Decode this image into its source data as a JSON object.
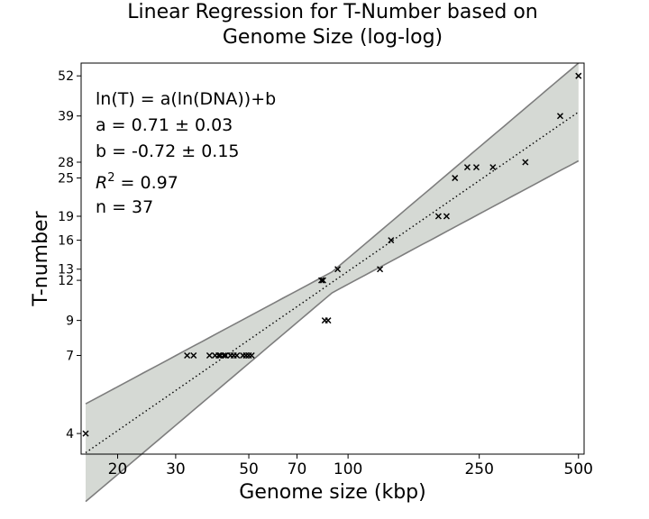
{
  "chart_data": {
    "type": "scatter",
    "title": "Linear Regression for T-Number based on Genome Size (log-log)",
    "title_lines": [
      "Linear Regression for T-Number based on",
      "Genome Size (log-log)"
    ],
    "xlabel": "Genome size (kbp)",
    "ylabel": "T-number",
    "xscale": "log",
    "yscale": "log",
    "xlim": [
      15.5,
      520
    ],
    "ylim": [
      3.45,
      57
    ],
    "xticks": [
      20,
      30,
      50,
      70,
      100,
      250,
      500
    ],
    "xtick_labels": [
      "20",
      "30",
      "50",
      "70",
      "100",
      "250",
      "500"
    ],
    "yticks": [
      4,
      7,
      9,
      12,
      13,
      16,
      19,
      25,
      28,
      39,
      52
    ],
    "ytick_labels": [
      "4",
      "7",
      "9",
      "12",
      "13",
      "16",
      "19",
      "25",
      "28",
      "39",
      "52"
    ],
    "grid": false,
    "legend": "none",
    "annotation_lines": [
      "ln(T) = a(ln(DNA))+b",
      "a = 0.71 ± 0.03",
      "b = -0.72 ± 0.15",
      " = 0.97",
      "n = 37"
    ],
    "r2_symbol": "R",
    "r2_exponent": "2",
    "fit": {
      "a": 0.71,
      "a_err": 0.03,
      "b": -0.72,
      "b_err": 0.15,
      "r2": 0.97,
      "n": 37,
      "x_range": [
        16,
        500
      ]
    },
    "series": [
      {
        "marker": "x",
        "points": [
          [
            16,
            4
          ],
          [
            32.5,
            7
          ],
          [
            34,
            7
          ],
          [
            38,
            7
          ],
          [
            39.5,
            7
          ],
          [
            40.5,
            7
          ],
          [
            41,
            7
          ],
          [
            42,
            7
          ],
          [
            42.5,
            7
          ],
          [
            44,
            7
          ],
          [
            45,
            7
          ],
          [
            46,
            7
          ],
          [
            48,
            7
          ],
          [
            49,
            7
          ],
          [
            50,
            7
          ],
          [
            51,
            7
          ],
          [
            83,
            12
          ],
          [
            84,
            12
          ],
          [
            85,
            9
          ],
          [
            87,
            9
          ],
          [
            93,
            13
          ],
          [
            125,
            13
          ],
          [
            135,
            16
          ],
          [
            188,
            19
          ],
          [
            199,
            19
          ],
          [
            211,
            25
          ],
          [
            230,
            27
          ],
          [
            245,
            27
          ],
          [
            275,
            27
          ],
          [
            345,
            28
          ],
          [
            440,
            39
          ],
          [
            500,
            52
          ]
        ]
      }
    ],
    "colors": {
      "marker": "#000000",
      "fit_line": "#000000",
      "band_fill": "#d5d9d4",
      "band_edge": "#7d7d7d",
      "axes": "#000000"
    }
  }
}
